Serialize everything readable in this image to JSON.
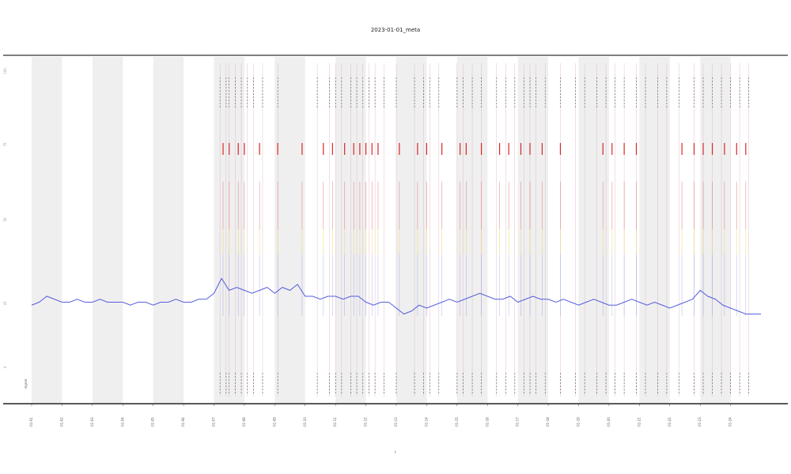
{
  "chart_data": {
    "type": "line",
    "title": "2023-01-01_meta",
    "xlabel": "t",
    "ylabel": "",
    "side_label": "signal",
    "xlim": [
      0,
      24
    ],
    "ylim": [
      0,
      100
    ],
    "grid": false,
    "legend": "none",
    "x_ticks": [
      "01-01",
      "01-02",
      "01-03",
      "01-04",
      "01-05",
      "01-06",
      "01-07",
      "01-08",
      "01-09",
      "01-10",
      "01-11",
      "01-12",
      "01-13",
      "01-14",
      "01-15",
      "01-16",
      "01-17",
      "01-18",
      "01-19",
      "01-20",
      "01-21",
      "01-22",
      "01-23",
      "01-24"
    ],
    "y_ticks": [
      "100",
      "75",
      "50",
      "25",
      "0"
    ],
    "shaded_bands": [
      [
        0,
        1
      ],
      [
        2,
        3
      ],
      [
        4,
        5
      ],
      [
        6,
        7
      ],
      [
        8,
        9
      ],
      [
        10,
        11
      ],
      [
        12,
        13
      ],
      [
        14,
        15
      ],
      [
        16,
        17
      ],
      [
        18,
        19
      ],
      [
        20,
        21
      ],
      [
        22,
        23
      ]
    ],
    "event_days": [
      6.2,
      6.4,
      6.5,
      6.7,
      6.9,
      7.1,
      7.3,
      7.6,
      8.1,
      9.4,
      9.8,
      10.0,
      10.2,
      10.5,
      10.7,
      10.9,
      11.1,
      11.3,
      11.6,
      12.0,
      12.6,
      12.9,
      13.1,
      13.4,
      14.0,
      14.2,
      14.5,
      14.8,
      15.3,
      15.6,
      15.9,
      16.2,
      16.4,
      16.6,
      16.9,
      17.4,
      17.9,
      18.2,
      18.6,
      18.9,
      19.2,
      19.5,
      19.9,
      20.2,
      20.6,
      20.9,
      21.3,
      21.8,
      22.1,
      22.4,
      22.7,
      23.0,
      23.3,
      23.6
    ],
    "red_event_days": [
      6.3,
      6.5,
      6.8,
      7.0,
      7.5,
      8.1,
      8.9,
      9.6,
      9.9,
      10.3,
      10.6,
      10.8,
      11.0,
      11.2,
      11.4,
      12.1,
      12.7,
      13.0,
      13.5,
      14.1,
      14.3,
      14.8,
      15.4,
      15.7,
      16.1,
      16.4,
      16.8,
      17.4,
      18.8,
      19.1,
      19.5,
      19.9,
      21.4,
      21.8,
      22.1,
      22.4,
      22.8,
      23.2,
      23.5
    ],
    "series": [
      {
        "color": "#3a44d8",
        "x": [
          0.0,
          0.25,
          0.5,
          0.75,
          1.0,
          1.25,
          1.5,
          1.75,
          2.0,
          2.25,
          2.5,
          2.75,
          3.0,
          3.25,
          3.5,
          3.75,
          4.0,
          4.25,
          4.5,
          4.75,
          5.0,
          5.25,
          5.5,
          5.75,
          6.0,
          6.25,
          6.5,
          6.75,
          7.0,
          7.25,
          7.5,
          7.75,
          8.0,
          8.25,
          8.5,
          8.75,
          9.0,
          9.25,
          9.5,
          9.75,
          10.0,
          10.25,
          10.5,
          10.75,
          11.0,
          11.25,
          11.5,
          11.75,
          12.0,
          12.25,
          12.5,
          12.75,
          13.0,
          13.25,
          13.5,
          13.75,
          14.0,
          14.25,
          14.5,
          14.75,
          15.0,
          15.25,
          15.5,
          15.75,
          16.0,
          16.25,
          16.5,
          16.75,
          17.0,
          17.25,
          17.5,
          17.75,
          18.0,
          18.25,
          18.5,
          18.75,
          19.0,
          19.25,
          19.5,
          19.75,
          20.0,
          20.25,
          20.5,
          20.75,
          21.0,
          21.25,
          21.5,
          21.75,
          22.0,
          22.25,
          22.5,
          22.75,
          23.0,
          23.25,
          23.5,
          23.75,
          24.0
        ],
        "values": [
          21,
          22,
          24,
          23,
          22,
          22,
          23,
          22,
          22,
          23,
          22,
          22,
          22,
          21,
          22,
          22,
          21,
          22,
          22,
          23,
          22,
          22,
          23,
          23,
          25,
          30,
          26,
          27,
          26,
          25,
          26,
          27,
          25,
          27,
          26,
          28,
          24,
          24,
          23,
          24,
          24,
          23,
          24,
          24,
          22,
          21,
          22,
          22,
          20,
          18,
          19,
          21,
          20,
          21,
          22,
          23,
          22,
          23,
          24,
          25,
          24,
          23,
          23,
          24,
          22,
          23,
          24,
          23,
          23,
          22,
          23,
          22,
          21,
          22,
          23,
          22,
          21,
          21,
          22,
          23,
          22,
          21,
          22,
          21,
          20,
          21,
          22,
          23,
          26,
          24,
          23,
          21,
          20,
          19,
          18,
          18,
          18
        ]
      }
    ]
  }
}
